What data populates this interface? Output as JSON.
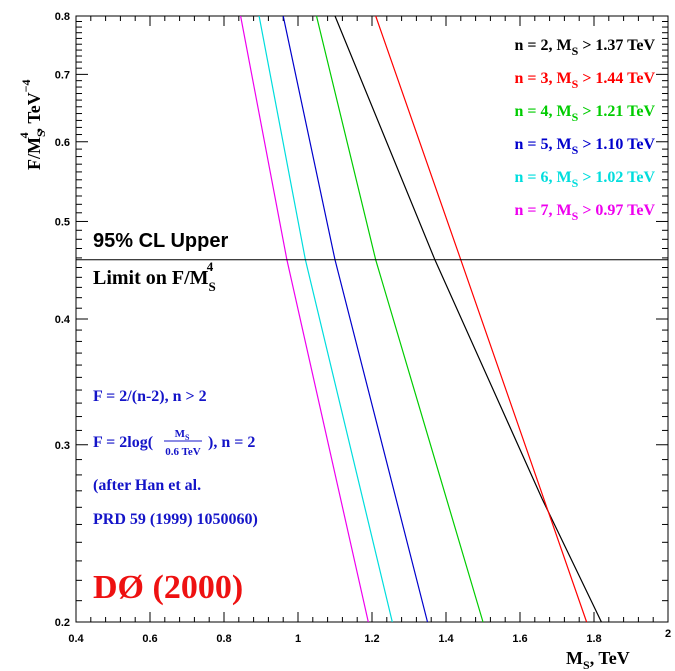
{
  "chart_data": {
    "type": "line",
    "x_axis": {
      "label_main": "M",
      "label_sub": "S",
      "label_suffix": ", TeV",
      "range": [
        0.4,
        2.0
      ],
      "ticks": [
        0.4,
        0.6,
        0.8,
        1.0,
        1.2,
        1.4,
        1.6,
        1.8,
        2.0
      ],
      "tick_labels": [
        "0.4",
        "0.6",
        "0.8",
        "1",
        "1.2",
        "1.4",
        "1.6",
        "1.8",
        "2"
      ]
    },
    "y_axis": {
      "label_main": "F/M",
      "label_sub": "S",
      "label_sup": "4",
      "label_suffix": ", TeV",
      "label_sup2": "−4",
      "scale": "log",
      "range": [
        0.2,
        0.8
      ],
      "tick_values": [
        0.2,
        0.3,
        0.4,
        0.5,
        0.6,
        0.7,
        0.8
      ],
      "tick_labels": [
        "0.2",
        "0.3",
        "0.4",
        "0.5",
        "0.6",
        "0.7",
        "0.8"
      ]
    },
    "limit_line": {
      "y": 0.458,
      "label_line1": "95% CL Upper",
      "label_line2_main": "Limit on F/M",
      "label_line2_sub": "S",
      "label_line2_sup": "4"
    },
    "series": [
      {
        "color": "#000000",
        "legend_prefix": "n = 2, M",
        "legend_sub": "S",
        "legend_suffix": " > 1.37 TeV",
        "points": [
          [
            1.1,
            0.8
          ],
          [
            1.37,
            0.458
          ],
          [
            1.66,
            0.265
          ],
          [
            1.82,
            0.2
          ]
        ]
      },
      {
        "color": "#ff0000",
        "legend_prefix": "n = 3, M",
        "legend_sub": "S",
        "legend_suffix": " > 1.44 TeV",
        "points": [
          [
            1.21,
            0.8
          ],
          [
            1.44,
            0.458
          ],
          [
            1.78,
            0.2
          ]
        ]
      },
      {
        "color": "#00cc00",
        "legend_prefix": "n = 4, M",
        "legend_sub": "S",
        "legend_suffix": " > 1.21 TeV",
        "points": [
          [
            1.05,
            0.8
          ],
          [
            1.21,
            0.458
          ],
          [
            1.5,
            0.2
          ]
        ]
      },
      {
        "color": "#0000cc",
        "legend_prefix": "n = 5, M",
        "legend_sub": "S",
        "legend_suffix": " > 1.10 TeV",
        "points": [
          [
            0.96,
            0.8
          ],
          [
            1.1,
            0.458
          ],
          [
            1.35,
            0.2
          ]
        ]
      },
      {
        "color": "#00dddd",
        "legend_prefix": "n = 6, M",
        "legend_sub": "S",
        "legend_suffix": " > 1.02 TeV",
        "points": [
          [
            0.895,
            0.8
          ],
          [
            1.02,
            0.458
          ],
          [
            1.255,
            0.2
          ]
        ]
      },
      {
        "color": "#ee00ee",
        "legend_prefix": "n = 7, M",
        "legend_sub": "S",
        "legend_suffix": " > 0.97 TeV",
        "points": [
          [
            0.845,
            0.8
          ],
          [
            0.97,
            0.458
          ],
          [
            1.19,
            0.2
          ]
        ]
      }
    ],
    "annotations": {
      "formula1": "F = 2/(n-2), n > 2",
      "formula2_pre": "F = 2log(",
      "formula2_num_main": "M",
      "formula2_num_sub": "S",
      "formula2_den": "0.6 TeV",
      "formula2_post": "), n = 2",
      "ref1": "(after Han et al.",
      "ref2": "PRD 59 (1999) 1050060)",
      "experiment": "DØ (2000)"
    },
    "colors": {
      "annotation": "#1414c8",
      "experiment": "#ee1111"
    }
  }
}
